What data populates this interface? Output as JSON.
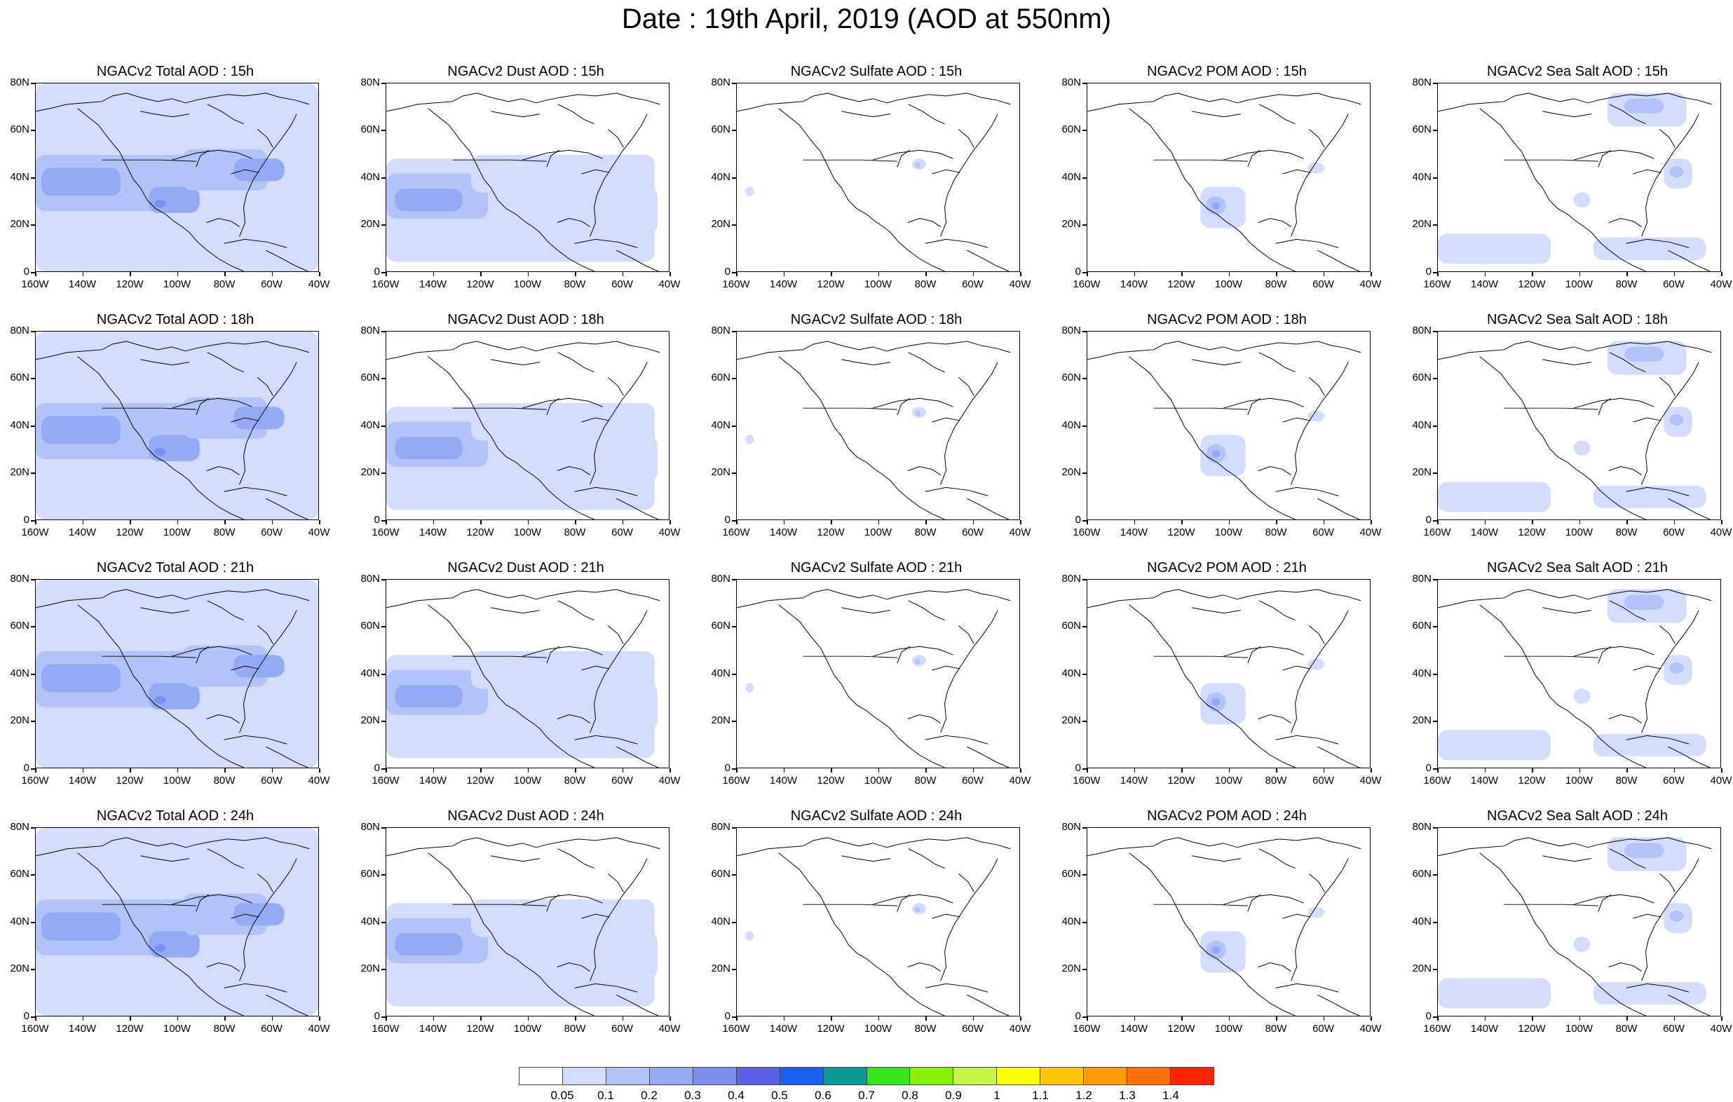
{
  "title": "Date : 19th April, 2019 (AOD at 550nm)",
  "lat_labels": [
    "80N",
    "60N",
    "40N",
    "20N",
    "0"
  ],
  "lon_labels": [
    "160W",
    "140W",
    "120W",
    "100W",
    "80W",
    "60W",
    "40W"
  ],
  "panels": [
    [
      {
        "title": "NGACv2 Total AOD : 15h",
        "species": "total"
      },
      {
        "title": "NGACv2 Dust AOD : 15h",
        "species": "dust"
      },
      {
        "title": "NGACv2 Sulfate AOD : 15h",
        "species": "sulfate"
      },
      {
        "title": "NGACv2 POM AOD : 15h",
        "species": "pom"
      },
      {
        "title": "NGACv2 Sea Salt AOD : 15h",
        "species": "seasalt"
      }
    ],
    [
      {
        "title": "NGACv2 Total AOD : 18h",
        "species": "total"
      },
      {
        "title": "NGACv2 Dust AOD : 18h",
        "species": "dust"
      },
      {
        "title": "NGACv2 Sulfate AOD : 18h",
        "species": "sulfate"
      },
      {
        "title": "NGACv2 POM AOD : 18h",
        "species": "pom"
      },
      {
        "title": "NGACv2 Sea Salt AOD : 18h",
        "species": "seasalt"
      }
    ],
    [
      {
        "title": "NGACv2 Total AOD : 21h",
        "species": "total"
      },
      {
        "title": "NGACv2 Dust AOD : 21h",
        "species": "dust"
      },
      {
        "title": "NGACv2 Sulfate AOD : 21h",
        "species": "sulfate"
      },
      {
        "title": "NGACv2 POM AOD : 21h",
        "species": "pom"
      },
      {
        "title": "NGACv2 Sea Salt AOD : 21h",
        "species": "seasalt"
      }
    ],
    [
      {
        "title": "NGACv2 Total AOD : 24h",
        "species": "total"
      },
      {
        "title": "NGACv2 Dust AOD : 24h",
        "species": "dust"
      },
      {
        "title": "NGACv2 Sulfate AOD : 24h",
        "species": "sulfate"
      },
      {
        "title": "NGACv2 POM AOD : 24h",
        "species": "pom"
      },
      {
        "title": "NGACv2 Sea Salt  AOD : 24h",
        "species": "seasalt"
      }
    ]
  ],
  "colorbar": {
    "labels": [
      "0.05",
      "0.1",
      "0.2",
      "0.3",
      "0.4",
      "0.5",
      "0.6",
      "0.7",
      "0.8",
      "0.9",
      "1",
      "1.1",
      "1.2",
      "1.3",
      "1.4"
    ],
    "colors": [
      "#ffffff",
      "#d3dcfb",
      "#b2c3f8",
      "#95aaf5",
      "#7e8ef0",
      "#5a63e8",
      "#1c60f8",
      "#0a9a9a",
      "#34e51c",
      "#86f000",
      "#c7f54a",
      "#ffff00",
      "#ffc800",
      "#ff9c00",
      "#ff7000",
      "#ff2400"
    ]
  },
  "colors": {
    "aod_light": "#d3dcfb",
    "aod_medium": "#b2c3f8",
    "aod_strong": "#95aaf5",
    "aod_peak": "#7e8ef0",
    "coastline": "#000000"
  }
}
